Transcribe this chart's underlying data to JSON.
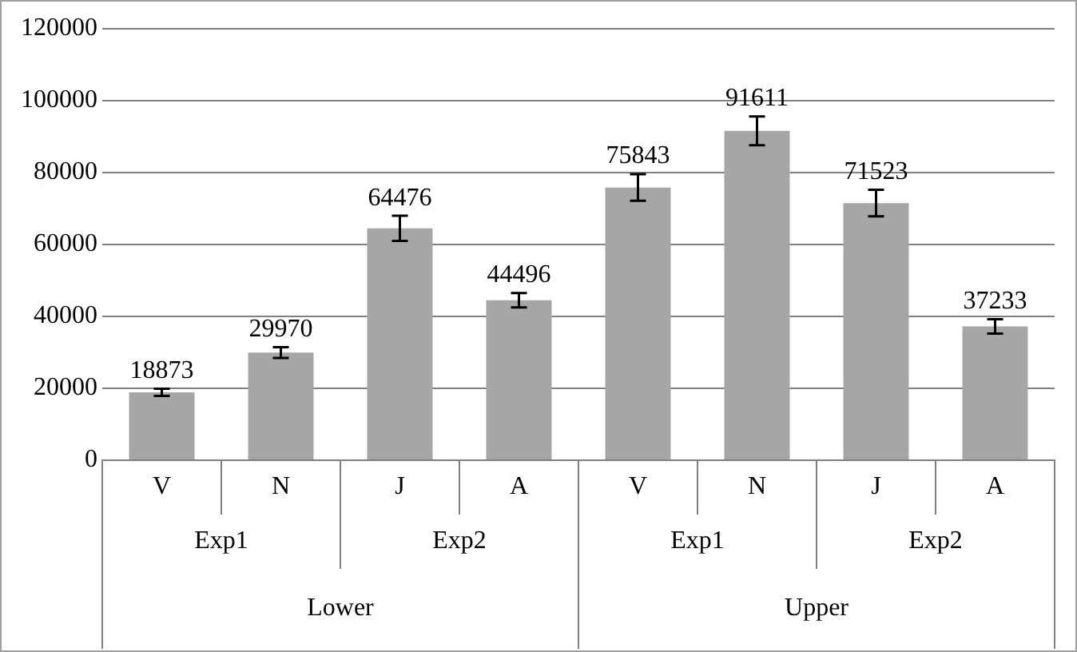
{
  "chart_data": {
    "type": "bar",
    "categories": [
      "V",
      "N",
      "J",
      "A",
      "V",
      "N",
      "J",
      "A"
    ],
    "values": [
      18873,
      29970,
      64476,
      44496,
      75843,
      91611,
      71523,
      37233
    ],
    "errors": [
      1000,
      1500,
      3500,
      2000,
      3700,
      4000,
      3700,
      2000
    ],
    "color": "#a6a6a6",
    "ylim": [
      0,
      120000
    ],
    "yticks": [
      0,
      20000,
      40000,
      60000,
      80000,
      100000,
      120000
    ],
    "grid": "y",
    "data_labels": true,
    "annotations": [
      "Exp1",
      "Exp2",
      "Exp1",
      "Exp2",
      "Lower",
      "Upper"
    ]
  }
}
